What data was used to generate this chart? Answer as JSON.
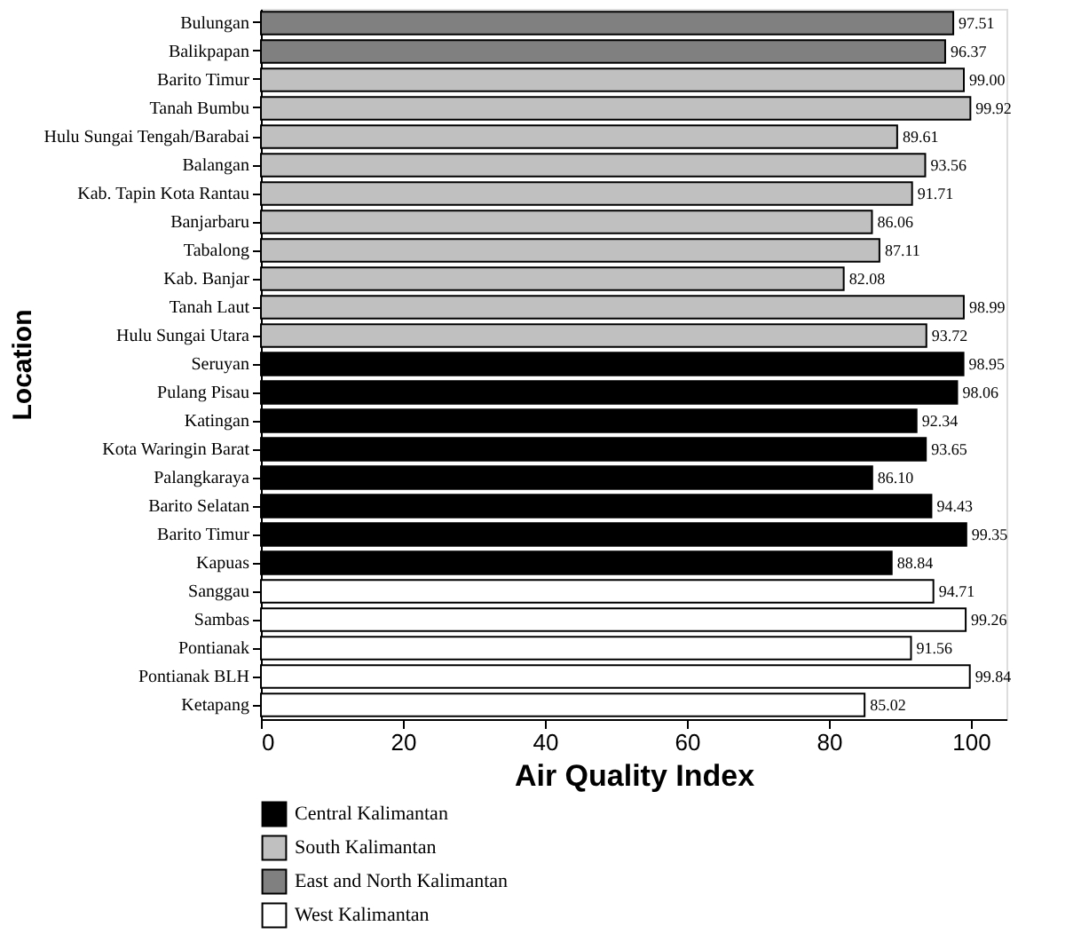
{
  "chart_data": {
    "type": "bar",
    "orientation": "horizontal",
    "xlabel": "Air Quality Index",
    "ylabel": "Location",
    "categories": [
      "Bulungan",
      "Balikpapan",
      "Barito Timur",
      "Tanah Bumbu",
      "Hulu Sungai Tengah/Barabai",
      "Balangan",
      "Kab. Tapin Kota Rantau",
      "Banjarbaru",
      "Tabalong",
      "Kab. Banjar",
      "Tanah Laut",
      "Hulu Sungai Utara",
      "Seruyan",
      "Pulang Pisau",
      "Katingan",
      "Kota Waringin Barat",
      "Palangkaraya",
      "Barito Selatan",
      "Barito Timur",
      "Kapuas",
      "Sanggau",
      "Sambas",
      "Pontianak",
      "Pontianak BLH",
      "Ketapang"
    ],
    "series": [
      {
        "name": "Central Kalimantan",
        "color": "#000000",
        "values": [
          null,
          null,
          null,
          null,
          null,
          null,
          null,
          null,
          null,
          null,
          null,
          null,
          98.95,
          98.06,
          92.34,
          93.65,
          86.1,
          94.43,
          99.35,
          88.84,
          null,
          null,
          null,
          null,
          null
        ],
        "value_labels": [
          null,
          null,
          null,
          null,
          null,
          null,
          null,
          null,
          null,
          null,
          null,
          null,
          "98.95",
          "98.06",
          "92.34",
          "93.65",
          "86.10",
          "94.43",
          "99.35",
          "88.84",
          null,
          null,
          null,
          null,
          null
        ]
      },
      {
        "name": "South Kalimantan",
        "color": "#c0c0c0",
        "values": [
          null,
          null,
          99.0,
          99.92,
          89.61,
          93.56,
          91.71,
          86.06,
          87.11,
          82.08,
          98.99,
          93.72,
          null,
          null,
          null,
          null,
          null,
          null,
          null,
          null,
          null,
          null,
          null,
          null,
          null
        ],
        "value_labels": [
          null,
          null,
          "99.00",
          "99.92",
          "89.61",
          "93.56",
          "91.71",
          "86.06",
          "87.11",
          "82.08",
          "98.99",
          "93.72",
          null,
          null,
          null,
          null,
          null,
          null,
          null,
          null,
          null,
          null,
          null,
          null,
          null
        ]
      },
      {
        "name": "East and North Kalimantan",
        "color": "#808080",
        "values": [
          97.51,
          96.37,
          null,
          null,
          null,
          null,
          null,
          null,
          null,
          null,
          null,
          null,
          null,
          null,
          null,
          null,
          null,
          null,
          null,
          null,
          null,
          null,
          null,
          null,
          null
        ],
        "value_labels": [
          "97.51",
          "96.37",
          null,
          null,
          null,
          null,
          null,
          null,
          null,
          null,
          null,
          null,
          null,
          null,
          null,
          null,
          null,
          null,
          null,
          null,
          null,
          null,
          null,
          null,
          null
        ]
      },
      {
        "name": "West Kalimantan",
        "color": "#ffffff",
        "values": [
          null,
          null,
          null,
          null,
          null,
          null,
          null,
          null,
          null,
          null,
          null,
          null,
          null,
          null,
          null,
          null,
          null,
          null,
          null,
          null,
          94.71,
          99.26,
          91.56,
          99.84,
          85.02
        ],
        "value_labels": [
          null,
          null,
          null,
          null,
          null,
          null,
          null,
          null,
          null,
          null,
          null,
          null,
          null,
          null,
          null,
          null,
          null,
          null,
          null,
          null,
          "94.71",
          "99.26",
          "91.56",
          "99.84",
          "85.02"
        ]
      }
    ],
    "xlim": [
      0,
      105
    ],
    "xticks": [
      0,
      20,
      40,
      60,
      80,
      100
    ],
    "legend": "bottom",
    "grid": false
  }
}
